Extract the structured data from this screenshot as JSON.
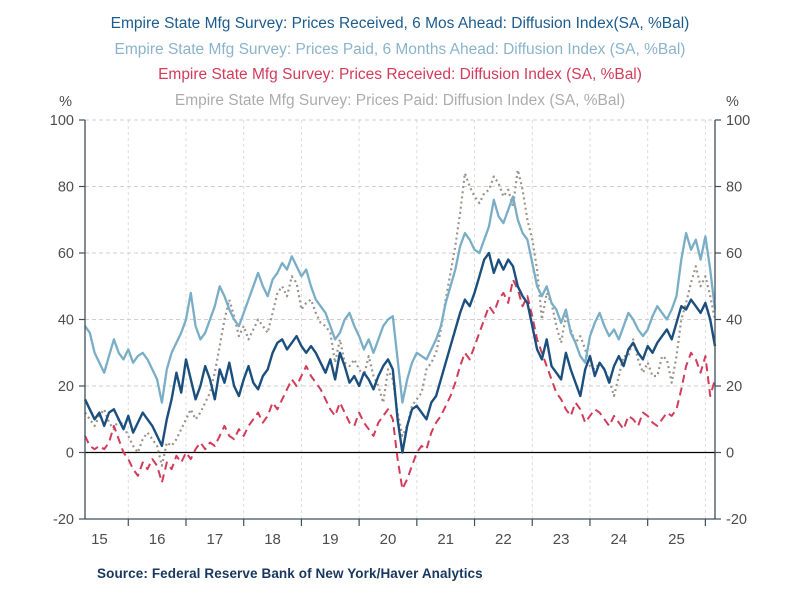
{
  "titles": [
    {
      "text": "Empire State Mfg Survey: Prices Received, 6 Mos Ahead: Diffusion Index(SA, %Bal)",
      "color": "#1d5c8f"
    },
    {
      "text": "Empire State Mfg Survey: Prices Paid, 6 Months Ahead: Diffusion Index (SA, %Bal)",
      "color": "#8ab4ca"
    },
    {
      "text": "Empire State Mfg Survey: Prices Received: Diffusion Index (SA, %Bal)",
      "color": "#d23b5a"
    },
    {
      "text": "Empire State Mfg Survey: Prices Paid: Diffusion Index (SA, %Bal)",
      "color": "#acacac"
    }
  ],
  "source": "Source:  Federal Reserve Bank of New York/Haver Analytics",
  "chart_data": {
    "type": "line",
    "frequency": "monthly",
    "x_start": "2014-10",
    "x_end": "2025-09",
    "x_tick_labels": [
      "15",
      "16",
      "17",
      "18",
      "19",
      "20",
      "21",
      "22",
      "23",
      "24",
      "25"
    ],
    "y_unit": "%",
    "ylim": [
      -20,
      100
    ],
    "y_ticks": [
      100,
      80,
      60,
      40,
      20,
      0,
      -20
    ],
    "grid": true,
    "zero_line": true,
    "axis_color": "#3d4f5d",
    "grid_color": "#cfcfcf",
    "tick_label_color": "#4d4d4d",
    "series": [
      {
        "name": "Prices Paid, 6 Months Ahead (SA, %Bal)",
        "color": "#79aec6",
        "style": "solid",
        "width": 2.3,
        "values": [
          38,
          36,
          30,
          27,
          24,
          29,
          34,
          30,
          28,
          31,
          27,
          29,
          30,
          28,
          25,
          22,
          15,
          25,
          30,
          33,
          36,
          40,
          48,
          38,
          34,
          36,
          40,
          44,
          50,
          47,
          43,
          40,
          38,
          42,
          46,
          50,
          54,
          50,
          47,
          52,
          54,
          57,
          55,
          59,
          56,
          53,
          55,
          50,
          46,
          44,
          42,
          38,
          34,
          36,
          40,
          42,
          38,
          35,
          31,
          34,
          30,
          34,
          38,
          40,
          41,
          28,
          15,
          22,
          27,
          30,
          29,
          28,
          31,
          34,
          38,
          45,
          50,
          55,
          62,
          66,
          64,
          61,
          60,
          64,
          68,
          76,
          71,
          69,
          73,
          77,
          70,
          66,
          64,
          57,
          50,
          47,
          50,
          45,
          43,
          39,
          43,
          36,
          33,
          29,
          27,
          35,
          39,
          42,
          38,
          35,
          37,
          34,
          38,
          42,
          40,
          37,
          35,
          37,
          41,
          44,
          42,
          40,
          43,
          47,
          58,
          66,
          61,
          64,
          58,
          65,
          55,
          43
        ]
      },
      {
        "name": "Prices Paid (SA, %Bal)",
        "color": "#9c948c",
        "style": "dotted",
        "width": 2.2,
        "values": [
          12,
          10,
          8,
          11,
          13,
          9,
          7,
          10,
          8,
          5,
          2,
          0,
          4,
          6,
          4,
          2,
          -4,
          3,
          2,
          4,
          7,
          10,
          13,
          10,
          12,
          15,
          18,
          24,
          32,
          40,
          46,
          41,
          35,
          38,
          34,
          37,
          40,
          38,
          36,
          42,
          48,
          50,
          47,
          53,
          51,
          43,
          45,
          46,
          42,
          39,
          38,
          36,
          27,
          34,
          27,
          26,
          28,
          25,
          23,
          29,
          23,
          20,
          15,
          25,
          22,
          12,
          5,
          8,
          14,
          16,
          18,
          25,
          27,
          30,
          37,
          46,
          54,
          62,
          72,
          84,
          80,
          77,
          75,
          78,
          79,
          83,
          81,
          77,
          79,
          74,
          85,
          79,
          70,
          64,
          55,
          40,
          48,
          45,
          38,
          33,
          41,
          37,
          33,
          35,
          31,
          26,
          25,
          27,
          25,
          22,
          17,
          23,
          29,
          29,
          34,
          28,
          24,
          27,
          23,
          23,
          29,
          28,
          21,
          29,
          40,
          45,
          51,
          56,
          50,
          53,
          47,
          40
        ]
      },
      {
        "name": "Prices Received (SA, %Bal)",
        "color": "#d23b5a",
        "style": "dashed",
        "width": 2.0,
        "values": [
          5,
          2,
          1,
          2,
          1,
          3,
          8,
          4,
          0,
          -2,
          -5,
          -7,
          -3,
          -5,
          -2,
          -4,
          -9,
          -3,
          -5,
          -1,
          -3,
          0,
          -2,
          1,
          3,
          1,
          3,
          2,
          5,
          8,
          5,
          4,
          7,
          5,
          8,
          10,
          12,
          9,
          11,
          15,
          13,
          16,
          19,
          22,
          20,
          23,
          26,
          23,
          21,
          19,
          16,
          13,
          11,
          15,
          12,
          9,
          8,
          12,
          9,
          7,
          5,
          9,
          11,
          13,
          10,
          -2,
          -11,
          -8,
          -4,
          0,
          2,
          1,
          6,
          9,
          11,
          14,
          17,
          21,
          26,
          30,
          28,
          32,
          36,
          40,
          44,
          42,
          46,
          48,
          45,
          52,
          49,
          44,
          47,
          41,
          34,
          30,
          26,
          22,
          18,
          16,
          13,
          11,
          15,
          13,
          9,
          11,
          13,
          12,
          10,
          8,
          11,
          9,
          7,
          11,
          10,
          8,
          12,
          11,
          9,
          8,
          10,
          12,
          11,
          13,
          19,
          26,
          30,
          28,
          24,
          29,
          17,
          22
        ]
      },
      {
        "name": "Prices Received, 6 Mos Ahead (SA, %Bal)",
        "color": "#1b4f7e",
        "style": "solid",
        "width": 2.4,
        "values": [
          16,
          13,
          10,
          12,
          8,
          12,
          13,
          10,
          7,
          11,
          6,
          9,
          12,
          10,
          8,
          5,
          2,
          10,
          16,
          24,
          18,
          28,
          22,
          16,
          20,
          26,
          22,
          16,
          25,
          21,
          27,
          20,
          17,
          22,
          26,
          21,
          19,
          23,
          25,
          30,
          33,
          34,
          31,
          33,
          35,
          32,
          30,
          32,
          30,
          27,
          24,
          28,
          22,
          30,
          26,
          21,
          23,
          20,
          24,
          22,
          19,
          23,
          26,
          28,
          25,
          10,
          0,
          8,
          13,
          14,
          12,
          10,
          15,
          17,
          22,
          27,
          32,
          37,
          42,
          46,
          44,
          48,
          53,
          58,
          60,
          54,
          58,
          55,
          58,
          56,
          50,
          47,
          45,
          38,
          31,
          28,
          34,
          26,
          24,
          22,
          30,
          25,
          21,
          17,
          25,
          29,
          23,
          27,
          25,
          21,
          26,
          29,
          26,
          31,
          33,
          30,
          28,
          32,
          30,
          33,
          35,
          37,
          34,
          39,
          44,
          43,
          46,
          44,
          42,
          45,
          40,
          32
        ]
      }
    ]
  }
}
